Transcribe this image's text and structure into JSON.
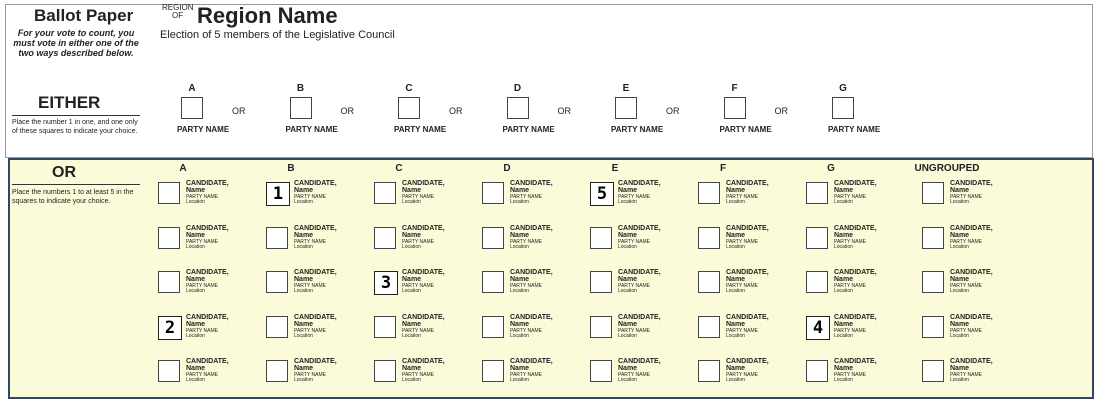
{
  "header": {
    "title": "Ballot Paper",
    "instructions": "For your vote to count, you must vote in either one of the two ways described below.",
    "region_small": [
      "REGION",
      "OF"
    ],
    "region_name": "Region Name",
    "subtitle": "Election of 5 members of the Legislative Council"
  },
  "above_line": {
    "heading": "EITHER",
    "note": "Place the number 1 in one, and one only of these squares to indicate your choice.",
    "groups": [
      {
        "letter": "A",
        "or": "OR",
        "party": "PARTY NAME"
      },
      {
        "letter": "B",
        "or": "OR",
        "party": "PARTY NAME"
      },
      {
        "letter": "C",
        "or": "OR",
        "party": "PARTY NAME"
      },
      {
        "letter": "D",
        "or": "OR",
        "party": "PARTY NAME"
      },
      {
        "letter": "E",
        "or": "OR",
        "party": "PARTY NAME"
      },
      {
        "letter": "F",
        "or": "OR",
        "party": "PARTY NAME"
      },
      {
        "letter": "G",
        "party": "PARTY NAME"
      }
    ]
  },
  "below_line": {
    "heading": "OR",
    "note": "Place the numbers 1 to at least 5 in the squares to indicate your choice.",
    "columns": [
      {
        "label": "A",
        "candidates": [
          {
            "surname": "CANDIDATE,",
            "name": "Name",
            "party": "PARTY NAME",
            "location": "Location"
          },
          {
            "surname": "CANDIDATE,",
            "name": "Name",
            "party": "PARTY NAME",
            "location": "Location"
          },
          {
            "surname": "CANDIDATE,",
            "name": "Name",
            "party": "PARTY NAME",
            "location": "Location"
          },
          {
            "surname": "CANDIDATE,",
            "name": "Name",
            "party": "PARTY NAME",
            "location": "Location",
            "mark": "2"
          },
          {
            "surname": "CANDIDATE,",
            "name": "Name",
            "party": "PARTY NAME",
            "location": "Location"
          }
        ]
      },
      {
        "label": "B",
        "candidates": [
          {
            "surname": "CANDIDATE,",
            "name": "Name",
            "party": "PARTY NAME",
            "location": "Location",
            "mark": "1"
          },
          {
            "surname": "CANDIDATE,",
            "name": "Name",
            "party": "PARTY NAME",
            "location": "Location"
          },
          {
            "surname": "CANDIDATE,",
            "name": "Name",
            "party": "PARTY NAME",
            "location": "Location"
          },
          {
            "surname": "CANDIDATE,",
            "name": "Name",
            "party": "PARTY NAME",
            "location": "Location"
          },
          {
            "surname": "CANDIDATE,",
            "name": "Name",
            "party": "PARTY NAME",
            "location": "Location"
          }
        ]
      },
      {
        "label": "C",
        "candidates": [
          {
            "surname": "CANDIDATE,",
            "name": "Name",
            "party": "PARTY NAME",
            "location": "Location"
          },
          {
            "surname": "CANDIDATE,",
            "name": "Name",
            "party": "PARTY NAME",
            "location": "Location"
          },
          {
            "surname": "CANDIDATE,",
            "name": "Name",
            "party": "PARTY NAME",
            "location": "Location",
            "mark": "3"
          },
          {
            "surname": "CANDIDATE,",
            "name": "Name",
            "party": "PARTY NAME",
            "location": "Location"
          },
          {
            "surname": "CANDIDATE,",
            "name": "Name",
            "party": "PARTY NAME",
            "location": "Location"
          }
        ]
      },
      {
        "label": "D",
        "candidates": [
          {
            "surname": "CANDIDATE,",
            "name": "Name",
            "party": "PARTY NAME",
            "location": "Location"
          },
          {
            "surname": "CANDIDATE,",
            "name": "Name",
            "party": "PARTY NAME",
            "location": "Location"
          },
          {
            "surname": "CANDIDATE,",
            "name": "Name",
            "party": "PARTY NAME",
            "location": "Location"
          },
          {
            "surname": "CANDIDATE,",
            "name": "Name",
            "party": "PARTY NAME",
            "location": "Location"
          },
          {
            "surname": "CANDIDATE,",
            "name": "Name",
            "party": "PARTY NAME",
            "location": "Location"
          }
        ]
      },
      {
        "label": "E",
        "candidates": [
          {
            "surname": "CANDIDATE,",
            "name": "Name",
            "party": "PARTY NAME",
            "location": "Location",
            "mark": "5"
          },
          {
            "surname": "CANDIDATE,",
            "name": "Name",
            "party": "PARTY NAME",
            "location": "Location"
          },
          {
            "surname": "CANDIDATE,",
            "name": "Name",
            "party": "PARTY NAME",
            "location": "Location"
          },
          {
            "surname": "CANDIDATE,",
            "name": "Name",
            "party": "PARTY NAME",
            "location": "Location"
          },
          {
            "surname": "CANDIDATE,",
            "name": "Name",
            "party": "PARTY NAME",
            "location": "Location"
          }
        ]
      },
      {
        "label": "F",
        "candidates": [
          {
            "surname": "CANDIDATE,",
            "name": "Name",
            "party": "PARTY NAME",
            "location": "Location"
          },
          {
            "surname": "CANDIDATE,",
            "name": "Name",
            "party": "PARTY NAME",
            "location": "Location"
          },
          {
            "surname": "CANDIDATE,",
            "name": "Name",
            "party": "PARTY NAME",
            "location": "Location"
          },
          {
            "surname": "CANDIDATE,",
            "name": "Name",
            "party": "PARTY NAME",
            "location": "Location"
          },
          {
            "surname": "CANDIDATE,",
            "name": "Name",
            "party": "PARTY NAME",
            "location": "Location"
          }
        ]
      },
      {
        "label": "G",
        "candidates": [
          {
            "surname": "CANDIDATE,",
            "name": "Name",
            "party": "PARTY NAME",
            "location": "Location"
          },
          {
            "surname": "CANDIDATE,",
            "name": "Name",
            "party": "PARTY NAME",
            "location": "Location"
          },
          {
            "surname": "CANDIDATE,",
            "name": "Name",
            "party": "PARTY NAME",
            "location": "Location"
          },
          {
            "surname": "CANDIDATE,",
            "name": "Name",
            "party": "PARTY NAME",
            "location": "Location",
            "mark": "4"
          },
          {
            "surname": "CANDIDATE,",
            "name": "Name",
            "party": "PARTY NAME",
            "location": "Location"
          }
        ]
      },
      {
        "label": "UNGROUPED",
        "candidates": [
          {
            "surname": "CANDIDATE,",
            "name": "Name",
            "party": "PARTY NAME",
            "location": "Location"
          },
          {
            "surname": "CANDIDATE,",
            "name": "Name",
            "party": "PARTY NAME",
            "location": "Location"
          },
          {
            "surname": "CANDIDATE,",
            "name": "Name",
            "party": "PARTY NAME",
            "location": "Location"
          },
          {
            "surname": "CANDIDATE,",
            "name": "Name",
            "party": "PARTY NAME",
            "location": "Location"
          },
          {
            "surname": "CANDIDATE,",
            "name": "Name",
            "party": "PARTY NAME",
            "location": "Location"
          }
        ]
      }
    ]
  }
}
